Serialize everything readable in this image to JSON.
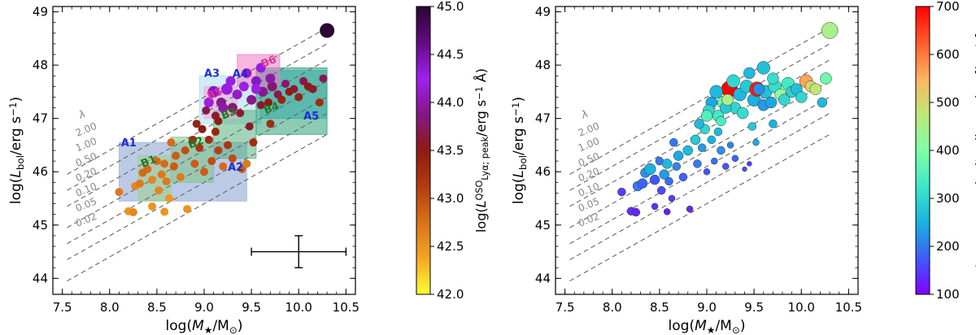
{
  "chart_data": [
    {
      "type": "scatter",
      "panel": "left",
      "xlabel_tex": [
        "log(",
        "M",
        "★",
        "/M",
        "⊙",
        ")"
      ],
      "ylabel_tex": [
        "log(",
        "L",
        "bol",
        "/erg s",
        "−1",
        ")"
      ],
      "xlim": [
        7.4,
        10.6
      ],
      "ylim": [
        43.7,
        49.1
      ],
      "xticks": [
        "7.5",
        "8.0",
        "8.5",
        "9.0",
        "9.5",
        "10.0",
        "10.5"
      ],
      "yticks": [
        "44",
        "45",
        "46",
        "47",
        "48",
        "49"
      ],
      "lambda_symbol": "λ",
      "eddington_lines": [
        "2.00",
        "1.00",
        "0.50",
        "0.20",
        "0.10",
        "0.05",
        "0.02"
      ],
      "bins": [
        {
          "label": "A1",
          "x": [
            8.1,
            9.45
          ],
          "y": [
            45.45,
            46.55
          ],
          "color": "#aabde0",
          "label_color": "#1f2bd6"
        },
        {
          "label": "A2",
          "x": [
            8.1,
            9.45
          ],
          "y": [
            45.45,
            46.55
          ],
          "color": "#aabde0",
          "label_color": "#1f2bd6"
        },
        {
          "label": "A3",
          "x": [
            8.95,
            9.3
          ],
          "y": [
            46.9,
            47.8
          ],
          "color": "#a8ddf0",
          "label_color": "#1f2bd6"
        },
        {
          "label": "A4",
          "x": [
            9.3,
            9.6
          ],
          "y": [
            46.9,
            47.8
          ],
          "color": "#a8ddf0",
          "label_color": "#1f2bd6"
        },
        {
          "label": "A5",
          "x": [
            9.6,
            10.3
          ],
          "y": [
            47.0,
            47.9
          ],
          "color": "#39b8e6",
          "label_color": "#1f2bd6"
        },
        {
          "label": "B1",
          "x": [
            8.3,
            8.65
          ],
          "y": [
            45.45,
            46.3
          ],
          "color": "#9ed08c",
          "label_color": "#1d7a1d"
        },
        {
          "label": "B2",
          "x": [
            8.65,
            9.1
          ],
          "y": [
            45.8,
            46.65
          ],
          "color": "#7fc486",
          "label_color": "#1d7a1d"
        },
        {
          "label": "B3",
          "x": [
            9.1,
            9.55
          ],
          "y": [
            46.25,
            47.15
          ],
          "color": "#55b37e",
          "label_color": "#1d7a1d"
        },
        {
          "label": "B4",
          "x": [
            9.55,
            10.3
          ],
          "y": [
            46.7,
            47.95
          ],
          "color": "#2ea077",
          "label_color": "#1d7a1d"
        },
        {
          "label": "B5",
          "x": [
            9.0,
            9.35
          ],
          "y": [
            47.0,
            47.6
          ],
          "color": "#f2a8d6",
          "label_color": "#e0339c"
        },
        {
          "label": "B6",
          "x": [
            9.35,
            9.8
          ],
          "y": [
            47.6,
            48.2
          ],
          "color": "#f07ac4",
          "label_color": "#e0339c"
        }
      ],
      "error_bar": {
        "x": 10.0,
        "y": 44.5,
        "xerr": 0.5,
        "yerr": 0.3
      },
      "colorbar": {
        "label_tex": [
          "log(",
          "L",
          "QSO",
          "Lyα; peak",
          "/erg s",
          "−1",
          " Å)"
        ],
        "range": [
          42.0,
          45.0
        ],
        "ticks": [
          "42.0",
          "42.5",
          "43.0",
          "43.5",
          "44.0",
          "44.5",
          "45.0"
        ],
        "colormap": [
          "#ffff33",
          "#f4a623",
          "#d9731a",
          "#b53a10",
          "#8e1b10",
          "#861686",
          "#a020f0",
          "#640a82",
          "#2a0533"
        ]
      },
      "points": [
        [
          8.1,
          45.62,
          42.7,
          5
        ],
        [
          8.2,
          45.26,
          42.5,
          5
        ],
        [
          8.25,
          45.24,
          42.6,
          5
        ],
        [
          8.27,
          45.73,
          42.6,
          5
        ],
        [
          8.32,
          45.78,
          42.7,
          5
        ],
        [
          8.35,
          45.98,
          42.8,
          5
        ],
        [
          8.4,
          46.05,
          42.8,
          5
        ],
        [
          8.45,
          45.85,
          42.6,
          5
        ],
        [
          8.5,
          46.2,
          42.8,
          5
        ],
        [
          8.52,
          45.65,
          42.6,
          5
        ],
        [
          8.55,
          45.95,
          42.7,
          5
        ],
        [
          8.58,
          46.15,
          42.8,
          5
        ],
        [
          8.6,
          45.82,
          42.7,
          5
        ],
        [
          8.63,
          45.5,
          42.5,
          5
        ],
        [
          8.58,
          45.25,
          42.5,
          5
        ],
        [
          8.68,
          46.1,
          42.9,
          5
        ],
        [
          8.7,
          46.3,
          42.9,
          5
        ],
        [
          8.75,
          45.9,
          42.7,
          5
        ],
        [
          8.8,
          46.4,
          43.0,
          5
        ],
        [
          8.82,
          45.3,
          42.5,
          5
        ],
        [
          8.88,
          46.6,
          43.3,
          5
        ],
        [
          8.9,
          46.15,
          42.9,
          5
        ],
        [
          8.95,
          46.45,
          43.2,
          5
        ],
        [
          8.98,
          46.8,
          43.5,
          5
        ],
        [
          9.0,
          46.0,
          42.9,
          5
        ],
        [
          9.05,
          46.6,
          43.3,
          5
        ],
        [
          9.08,
          46.2,
          43.0,
          5
        ],
        [
          9.12,
          46.75,
          43.4,
          5
        ],
        [
          9.15,
          46.4,
          43.1,
          5
        ],
        [
          9.2,
          46.1,
          42.8,
          5
        ],
        [
          9.25,
          46.5,
          43.2,
          5
        ],
        [
          9.3,
          46.25,
          43.0,
          5
        ],
        [
          9.4,
          46.05,
          42.9,
          5
        ],
        [
          9.45,
          46.15,
          42.7,
          5
        ],
        [
          9.48,
          46.85,
          43.6,
          5
        ],
        [
          9.52,
          46.55,
          43.3,
          5
        ],
        [
          9.12,
          47.05,
          43.6,
          5
        ],
        [
          9.18,
          47.3,
          43.9,
          6
        ],
        [
          9.24,
          47.55,
          44.3,
          7
        ],
        [
          9.3,
          47.2,
          43.8,
          6
        ],
        [
          9.35,
          47.45,
          44.1,
          6
        ],
        [
          9.38,
          47.1,
          43.6,
          5
        ],
        [
          9.42,
          47.6,
          44.2,
          6
        ],
        [
          9.5,
          47.35,
          43.9,
          6
        ],
        [
          9.55,
          47.7,
          44.4,
          6
        ],
        [
          9.6,
          47.25,
          43.6,
          5
        ],
        [
          9.62,
          47.5,
          43.9,
          6
        ],
        [
          9.68,
          47.3,
          43.5,
          5
        ],
        [
          9.72,
          47.6,
          43.8,
          6
        ],
        [
          9.78,
          47.45,
          43.7,
          5
        ],
        [
          9.82,
          47.35,
          43.4,
          5
        ],
        [
          9.86,
          47.65,
          43.8,
          5
        ],
        [
          9.9,
          47.5,
          43.5,
          5
        ],
        [
          9.95,
          47.55,
          43.6,
          5
        ],
        [
          10.0,
          47.4,
          43.4,
          5
        ],
        [
          10.05,
          47.7,
          43.7,
          5
        ],
        [
          10.1,
          47.6,
          43.5,
          5
        ],
        [
          10.15,
          47.55,
          43.6,
          5
        ],
        [
          10.22,
          47.3,
          43.3,
          5
        ],
        [
          10.26,
          47.75,
          43.7,
          5
        ],
        [
          9.05,
          47.3,
          44.2,
          6
        ],
        [
          9.1,
          47.5,
          44.4,
          7
        ],
        [
          9.2,
          47.2,
          44.0,
          6
        ],
        [
          9.28,
          47.7,
          44.3,
          6
        ],
        [
          9.45,
          47.85,
          44.1,
          6
        ],
        [
          9.55,
          47.55,
          44.2,
          6
        ],
        [
          9.6,
          47.95,
          44.3,
          6
        ],
        [
          9.7,
          47.75,
          44.0,
          6
        ],
        [
          10.3,
          48.65,
          45.0,
          9
        ],
        [
          8.65,
          46.55,
          42.8,
          5
        ],
        [
          8.92,
          46.9,
          43.4,
          5
        ],
        [
          9.02,
          47.15,
          43.7,
          5
        ],
        [
          8.45,
          45.35,
          42.5,
          5
        ],
        [
          9.7,
          46.9,
          43.3,
          5
        ],
        [
          9.15,
          46.95,
          43.5,
          5
        ]
      ]
    },
    {
      "type": "scatter",
      "panel": "right",
      "xlabel_tex": [
        "log(",
        "M",
        "★",
        "/M",
        "⊙",
        ")"
      ],
      "ylabel_tex": [
        "log(",
        "L",
        "bol",
        "/erg s",
        "−1",
        ")"
      ],
      "xlim": [
        7.4,
        10.6
      ],
      "ylim": [
        43.7,
        49.1
      ],
      "xticks": [
        "7.5",
        "8.0",
        "8.5",
        "9.0",
        "9.5",
        "10.0",
        "10.5"
      ],
      "yticks": [
        "44",
        "45",
        "46",
        "47",
        "48",
        "49"
      ],
      "lambda_symbol": "λ",
      "eddington_lines": [
        "2.00",
        "1.00",
        "0.50",
        "0.20",
        "0.10",
        "0.05",
        "0.02"
      ],
      "colorbar": {
        "label": "Lyα mean velocity dispersion [km/s]",
        "range": [
          100,
          700
        ],
        "ticks": [
          "100",
          "200",
          "300",
          "400",
          "500",
          "600",
          "700"
        ],
        "colormap": [
          "#7f00ff",
          "#3f5cf6",
          "#1ab2e0",
          "#3ee8c6",
          "#7fffa8",
          "#bfe87a",
          "#ffb360",
          "#ff5c2e",
          "#ff0000"
        ]
      },
      "points": [
        [
          8.1,
          45.62,
          150,
          5
        ],
        [
          8.2,
          45.26,
          140,
          5
        ],
        [
          8.25,
          45.24,
          130,
          5
        ],
        [
          8.27,
          45.73,
          200,
          6
        ],
        [
          8.32,
          45.78,
          180,
          6
        ],
        [
          8.35,
          45.98,
          220,
          6
        ],
        [
          8.4,
          46.05,
          250,
          7
        ],
        [
          8.45,
          45.85,
          170,
          6
        ],
        [
          8.5,
          46.2,
          200,
          5
        ],
        [
          8.52,
          45.65,
          160,
          5
        ],
        [
          8.55,
          45.95,
          230,
          6
        ],
        [
          8.58,
          46.15,
          260,
          6
        ],
        [
          8.6,
          45.82,
          190,
          5
        ],
        [
          8.63,
          45.5,
          150,
          4
        ],
        [
          8.58,
          45.25,
          120,
          4
        ],
        [
          8.68,
          46.1,
          210,
          5
        ],
        [
          8.7,
          46.3,
          240,
          6
        ],
        [
          8.75,
          45.9,
          180,
          5
        ],
        [
          8.8,
          46.4,
          260,
          6
        ],
        [
          8.82,
          45.3,
          130,
          4
        ],
        [
          8.88,
          46.6,
          280,
          6
        ],
        [
          8.9,
          46.15,
          200,
          5
        ],
        [
          8.95,
          46.45,
          230,
          5
        ],
        [
          8.98,
          46.8,
          300,
          6
        ],
        [
          9.0,
          46.0,
          170,
          4
        ],
        [
          9.05,
          46.6,
          250,
          5
        ],
        [
          9.08,
          46.2,
          190,
          4
        ],
        [
          9.12,
          46.75,
          260,
          5
        ],
        [
          9.15,
          46.4,
          220,
          5
        ],
        [
          9.2,
          46.1,
          170,
          4
        ],
        [
          9.25,
          46.5,
          210,
          4
        ],
        [
          9.3,
          46.25,
          180,
          4
        ],
        [
          9.4,
          46.05,
          160,
          3
        ],
        [
          9.45,
          46.15,
          150,
          3
        ],
        [
          9.48,
          46.85,
          280,
          5
        ],
        [
          9.52,
          46.55,
          240,
          4
        ],
        [
          9.12,
          47.05,
          330,
          7
        ],
        [
          9.18,
          47.3,
          380,
          8
        ],
        [
          9.24,
          47.55,
          700,
          10
        ],
        [
          9.3,
          47.2,
          300,
          7
        ],
        [
          9.35,
          47.45,
          260,
          8
        ],
        [
          9.38,
          47.1,
          310,
          7
        ],
        [
          9.42,
          47.6,
          280,
          8
        ],
        [
          9.5,
          47.35,
          250,
          8
        ],
        [
          9.53,
          47.55,
          680,
          9
        ],
        [
          9.6,
          47.25,
          230,
          7
        ],
        [
          9.62,
          47.5,
          270,
          8
        ],
        [
          9.68,
          47.3,
          240,
          7
        ],
        [
          9.72,
          47.6,
          310,
          8
        ],
        [
          9.78,
          47.45,
          420,
          7
        ],
        [
          9.82,
          47.35,
          300,
          7
        ],
        [
          9.86,
          47.65,
          330,
          8
        ],
        [
          9.9,
          47.5,
          290,
          7
        ],
        [
          9.95,
          47.55,
          270,
          7
        ],
        [
          10.0,
          47.4,
          300,
          7
        ],
        [
          10.05,
          47.7,
          560,
          8
        ],
        [
          10.1,
          47.6,
          500,
          7
        ],
        [
          10.15,
          47.55,
          480,
          7
        ],
        [
          10.22,
          47.3,
          260,
          6
        ],
        [
          10.26,
          47.75,
          380,
          7
        ],
        [
          9.05,
          47.3,
          240,
          7
        ],
        [
          9.1,
          47.5,
          260,
          8
        ],
        [
          9.2,
          47.2,
          280,
          7
        ],
        [
          9.28,
          47.7,
          300,
          8
        ],
        [
          9.45,
          47.85,
          260,
          7
        ],
        [
          9.55,
          47.55,
          220,
          7
        ],
        [
          9.6,
          47.95,
          270,
          8
        ],
        [
          9.7,
          47.75,
          310,
          7
        ],
        [
          10.3,
          48.65,
          450,
          10
        ],
        [
          8.65,
          46.55,
          200,
          5
        ],
        [
          8.92,
          46.9,
          260,
          6
        ],
        [
          9.02,
          47.15,
          300,
          7
        ],
        [
          8.45,
          45.35,
          140,
          4
        ],
        [
          9.7,
          46.9,
          250,
          5
        ],
        [
          9.15,
          46.95,
          340,
          6
        ],
        [
          9.0,
          47.05,
          350,
          7
        ],
        [
          9.22,
          47.35,
          450,
          7
        ]
      ]
    }
  ]
}
